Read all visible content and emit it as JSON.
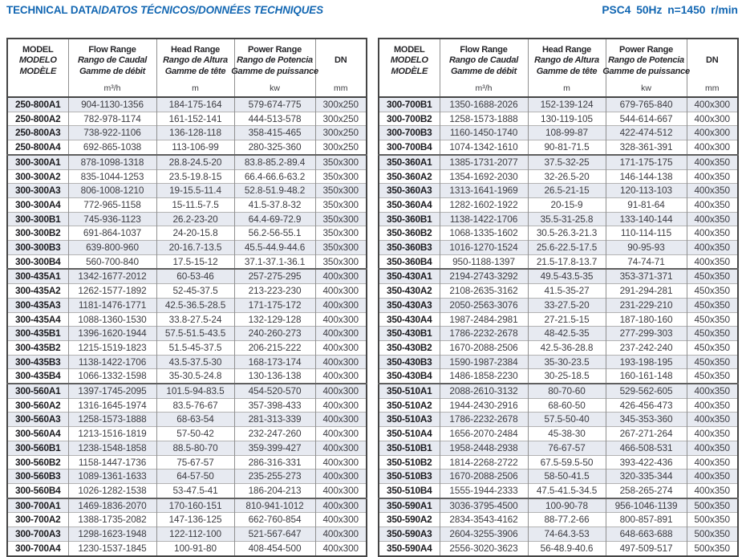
{
  "title": {
    "main": "TECHNICAL DATA/",
    "italic": "DATOS TÉCNICOS/DONNÉES TECHNIQUES",
    "spec": "PSC4 50Hz n=1450 r/min"
  },
  "colors": {
    "accent_blue": "#1166b2",
    "shaded_row": "#e7eaf1",
    "outer_border": "#454545",
    "inner_border": "#8f8f8f"
  },
  "header": {
    "columns": [
      {
        "key": "model",
        "lines": [
          "MODEL",
          "MODELO",
          "MODÈLE"
        ],
        "unit": ""
      },
      {
        "key": "flow",
        "lines": [
          "Flow Range",
          "Rango de Caudal",
          "Gamme de débit"
        ],
        "unit": "m³/h"
      },
      {
        "key": "head",
        "lines": [
          "Head Range",
          "Rango de Altura",
          "Gamme de tête"
        ],
        "unit": "m"
      },
      {
        "key": "power",
        "lines": [
          "Power Range",
          "Rango de Potencia",
          "Gamme de puissance"
        ],
        "unit": "kw"
      },
      {
        "key": "dn",
        "lines": [
          "DN"
        ],
        "unit": "mm"
      }
    ]
  },
  "tables": [
    {
      "name": "data-table-left",
      "group_starts": [
        4,
        12,
        20,
        28
      ],
      "rows": [
        [
          "250-800A1",
          "904-1130-1356",
          "184-175-164",
          "579-674-775",
          "300x250"
        ],
        [
          "250-800A2",
          "782-978-1174",
          "161-152-141",
          "444-513-578",
          "300x250"
        ],
        [
          "250-800A3",
          "738-922-1106",
          "136-128-118",
          "358-415-465",
          "300x250"
        ],
        [
          "250-800A4",
          "692-865-1038",
          "113-106-99",
          "280-325-360",
          "300x250"
        ],
        [
          "300-300A1",
          "878-1098-1318",
          "28.8-24.5-20",
          "83.8-85.2-89.4",
          "350x300"
        ],
        [
          "300-300A2",
          "835-1044-1253",
          "23.5-19.8-15",
          "66.4-66.6-63.2",
          "350x300"
        ],
        [
          "300-300A3",
          "806-1008-1210",
          "19-15.5-11.4",
          "52.8-51.9-48.2",
          "350x300"
        ],
        [
          "300-300A4",
          "772-965-1158",
          "15-11.5-7.5",
          "41.5-37.8-32",
          "350x300"
        ],
        [
          "300-300B1",
          "745-936-1123",
          "26.2-23-20",
          "64.4-69-72.9",
          "350x300"
        ],
        [
          "300-300B2",
          "691-864-1037",
          "24-20-15.8",
          "56.2-56-55.1",
          "350x300"
        ],
        [
          "300-300B3",
          "639-800-960",
          "20-16.7-13.5",
          "45.5-44.9-44.6",
          "350x300"
        ],
        [
          "300-300B4",
          "560-700-840",
          "17.5-15-12",
          "37.1-37.1-36.1",
          "350x300"
        ],
        [
          "300-435A1",
          "1342-1677-2012",
          "60-53-46",
          "257-275-295",
          "400x300"
        ],
        [
          "300-435A2",
          "1262-1577-1892",
          "52-45-37.5",
          "213-223-230",
          "400x300"
        ],
        [
          "300-435A3",
          "1181-1476-1771",
          "42.5-36.5-28.5",
          "171-175-172",
          "400x300"
        ],
        [
          "300-435A4",
          "1088-1360-1530",
          "33.8-27.5-24",
          "132-129-128",
          "400x300"
        ],
        [
          "300-435B1",
          "1396-1620-1944",
          "57.5-51.5-43.5",
          "240-260-273",
          "400x300"
        ],
        [
          "300-435B2",
          "1215-1519-1823",
          "51.5-45-37.5",
          "206-215-222",
          "400x300"
        ],
        [
          "300-435B3",
          "1138-1422-1706",
          "43.5-37.5-30",
          "168-173-174",
          "400x300"
        ],
        [
          "300-435B4",
          "1066-1332-1598",
          "35-30.5-24.8",
          "130-136-138",
          "400x300"
        ],
        [
          "300-560A1",
          "1397-1745-2095",
          "101.5-94-83.5",
          "454-520-570",
          "400x300"
        ],
        [
          "300-560A2",
          "1316-1645-1974",
          "83.5-76-67",
          "357-398-433",
          "400x300"
        ],
        [
          "300-560A3",
          "1258-1573-1888",
          "68-63-54",
          "281-313-339",
          "400x300"
        ],
        [
          "300-560A4",
          "1213-1516-1819",
          "57-50-42",
          "232-247-260",
          "400x300"
        ],
        [
          "300-560B1",
          "1238-1548-1858",
          "88.5-80-70",
          "359-399-427",
          "400x300"
        ],
        [
          "300-560B2",
          "1158-1447-1736",
          "75-67-57",
          "286-316-331",
          "400x300"
        ],
        [
          "300-560B3",
          "1089-1361-1633",
          "64-57-50",
          "235-255-273",
          "400x300"
        ],
        [
          "300-560B4",
          "1026-1282-1538",
          "53-47.5-41",
          "186-204-213",
          "400x300"
        ],
        [
          "300-700A1",
          "1469-1836-2070",
          "170-160-151",
          "810-941-1012",
          "400x300"
        ],
        [
          "300-700A2",
          "1388-1735-2082",
          "147-136-125",
          "662-760-854",
          "400x300"
        ],
        [
          "300-700A3",
          "1298-1623-1948",
          "122-112-100",
          "521-567-647",
          "400x300"
        ],
        [
          "300-700A4",
          "1230-1537-1845",
          "100-91-80",
          "408-454-500",
          "400x300"
        ]
      ]
    },
    {
      "name": "data-table-right",
      "group_starts": [
        4,
        12,
        20,
        28
      ],
      "rows": [
        [
          "300-700B1",
          "1350-1688-2026",
          "152-139-124",
          "679-765-840",
          "400x300"
        ],
        [
          "300-700B2",
          "1258-1573-1888",
          "130-119-105",
          "544-614-667",
          "400x300"
        ],
        [
          "300-700B3",
          "1160-1450-1740",
          "108-99-87",
          "422-474-512",
          "400x300"
        ],
        [
          "300-700B4",
          "1074-1342-1610",
          "90-81-71.5",
          "328-361-391",
          "400x300"
        ],
        [
          "350-360A1",
          "1385-1731-2077",
          "37.5-32-25",
          "171-175-175",
          "400x350"
        ],
        [
          "350-360A2",
          "1354-1692-2030",
          "32-26.5-20",
          "146-144-138",
          "400x350"
        ],
        [
          "350-360A3",
          "1313-1641-1969",
          "26.5-21-15",
          "120-113-103",
          "400x350"
        ],
        [
          "350-360A4",
          "1282-1602-1922",
          "20-15-9",
          "91-81-64",
          "400x350"
        ],
        [
          "350-360B1",
          "1138-1422-1706",
          "35.5-31-25.8",
          "133-140-144",
          "400x350"
        ],
        [
          "350-360B2",
          "1068-1335-1602",
          "30.5-26.3-21.3",
          "110-114-115",
          "400x350"
        ],
        [
          "350-360B3",
          "1016-1270-1524",
          "25.6-22.5-17.5",
          "90-95-93",
          "400x350"
        ],
        [
          "350-360B4",
          "950-1188-1397",
          "21.5-17.8-13.7",
          "74-74-71",
          "400x350"
        ],
        [
          "350-430A1",
          "2194-2743-3292",
          "49.5-43.5-35",
          "353-371-371",
          "450x350"
        ],
        [
          "350-430A2",
          "2108-2635-3162",
          "41.5-35-27",
          "291-294-281",
          "450x350"
        ],
        [
          "350-430A3",
          "2050-2563-3076",
          "33-27.5-20",
          "231-229-210",
          "450x350"
        ],
        [
          "350-430A4",
          "1987-2484-2981",
          "27-21.5-15",
          "187-180-160",
          "450x350"
        ],
        [
          "350-430B1",
          "1786-2232-2678",
          "48-42.5-35",
          "277-299-303",
          "450x350"
        ],
        [
          "350-430B2",
          "1670-2088-2506",
          "42.5-36-28.8",
          "237-242-240",
          "450x350"
        ],
        [
          "350-430B3",
          "1590-1987-2384",
          "35-30-23.5",
          "193-198-195",
          "450x350"
        ],
        [
          "350-430B4",
          "1486-1858-2230",
          "30-25-18.5",
          "160-161-148",
          "450x350"
        ],
        [
          "350-510A1",
          "2088-2610-3132",
          "80-70-60",
          "529-562-605",
          "400x350"
        ],
        [
          "350-510A2",
          "1944-2430-2916",
          "68-60-50",
          "426-456-473",
          "400x350"
        ],
        [
          "350-510A3",
          "1786-2232-2678",
          "57.5-50-40",
          "345-353-360",
          "400x350"
        ],
        [
          "350-510A4",
          "1656-2070-2484",
          "45-38-30",
          "267-271-264",
          "400x350"
        ],
        [
          "350-510B1",
          "1958-2448-2938",
          "76-67-57",
          "466-508-531",
          "400x350"
        ],
        [
          "350-510B2",
          "1814-2268-2722",
          "67.5-59.5-50",
          "393-422-436",
          "400x350"
        ],
        [
          "350-510B3",
          "1670-2088-2506",
          "58-50-41.5",
          "320-335-344",
          "400x350"
        ],
        [
          "350-510B4",
          "1555-1944-2333",
          "47.5-41.5-34.5",
          "258-265-274",
          "400x350"
        ],
        [
          "350-590A1",
          "3036-3795-4500",
          "100-90-78",
          "956-1046-1139",
          "500x350"
        ],
        [
          "350-590A2",
          "2834-3543-4162",
          "88-77.2-66",
          "800-857-891",
          "500x350"
        ],
        [
          "350-590A3",
          "2604-3255-3906",
          "74-64.3-53",
          "648-663-688",
          "500x350"
        ],
        [
          "350-590A4",
          "2556-3020-3623",
          "56-48.9-40.6",
          "497-509-517",
          "500x350"
        ]
      ]
    }
  ]
}
